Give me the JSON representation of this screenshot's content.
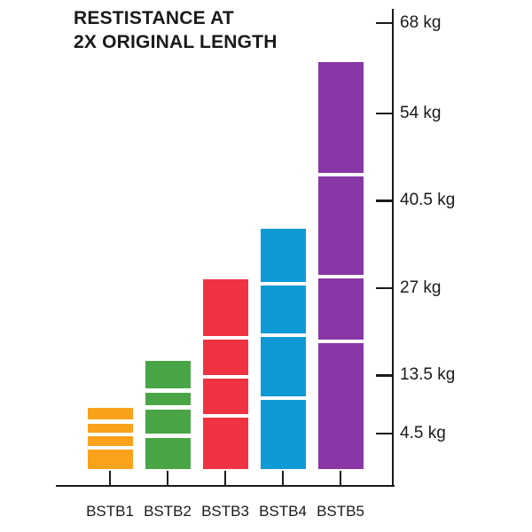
{
  "title": {
    "line1": "RESTISTANCE AT",
    "line2": "2X ORIGINAL LENGTH"
  },
  "chart_data": {
    "type": "bar",
    "title": "RESTISTANCE AT 2X ORIGINAL LENGTH",
    "categories": [
      "BSTB1",
      "BSTB2",
      "BSTB3",
      "BSTB4",
      "BSTB5"
    ],
    "series": [
      {
        "name": "Resistance at 2x original length",
        "unit": "kg",
        "values": [
          8.5,
          15.8,
          28.4,
          36.2,
          61.9
        ]
      }
    ],
    "segment_boundaries_kg": [
      [
        6.4,
        4.4,
        2.3
      ],
      [
        11.2,
        8.6,
        4.2
      ],
      [
        19.3,
        13.3,
        7.3
      ],
      [
        27.7,
        19.7,
        10.0
      ],
      [
        44.5,
        28.8,
        18.8
      ]
    ],
    "bar_colors": [
      "#FAA21B",
      "#4AA546",
      "#EF3343",
      "#0E9AD5",
      "#8936A7"
    ],
    "y_tick_labels": [
      "68 kg",
      "54 kg",
      "40.5 kg",
      "27 kg",
      "13.5 kg",
      "4.5 kg"
    ],
    "y_tick_values": [
      68,
      54,
      40.5,
      27,
      13.5,
      4.5
    ],
    "ylim": [
      0,
      70
    ],
    "xlabel": "",
    "ylabel": "kg",
    "grid": false,
    "legend": "none",
    "axis_side": "right",
    "axis_color": "#1A1A1A",
    "divider_color": "#FFFFFF",
    "background": "#FFFFFF"
  }
}
